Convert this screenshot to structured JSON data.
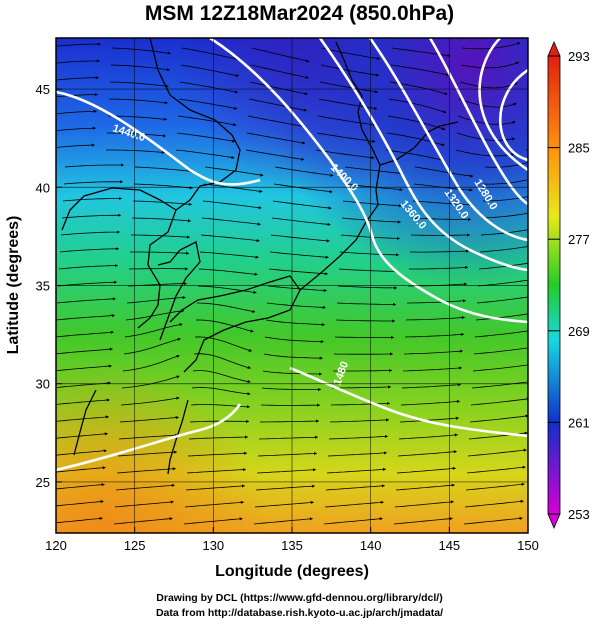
{
  "title": "MSM 12Z18Mar2024 (850.0hPa)",
  "chart_data": {
    "type": "heatmap",
    "title": "MSM 12Z18Mar2024 (850.0hPa)",
    "xlabel": "Longitude (degrees)",
    "ylabel": "Latitude  (degrees)",
    "xlim": [
      120,
      150
    ],
    "ylim": [
      22.4,
      47.6
    ],
    "x_ticks": [
      "120",
      "125",
      "130",
      "135",
      "140",
      "145",
      "150"
    ],
    "y_ticks": [
      "25",
      "30",
      "35",
      "40",
      "45"
    ],
    "grid": true,
    "colorbar": {
      "range": [
        253,
        293
      ],
      "tick_labels": [
        "293",
        "285",
        "277",
        "269",
        "261",
        "253"
      ],
      "colors": [
        "#d400d4",
        "#1030c8",
        "#1ad6e0",
        "#22cc2a",
        "#e8e81a",
        "#ff9010",
        "#e02010"
      ]
    },
    "contour_labels": [
      "1440.0",
      "1400.0",
      "1360.0",
      "1320.0",
      "1280.0",
      "1480"
    ],
    "overlays": [
      "geopotential height contours (white)",
      "wind streamlines (black)",
      "coastlines (black)"
    ]
  },
  "credits": {
    "line1": "Drawing by DCL (https://www.gfd-dennou.org/library/dcl/)",
    "line2": "Data from http://database.rish.kyoto-u.ac.jp/arch/jmadata/"
  }
}
